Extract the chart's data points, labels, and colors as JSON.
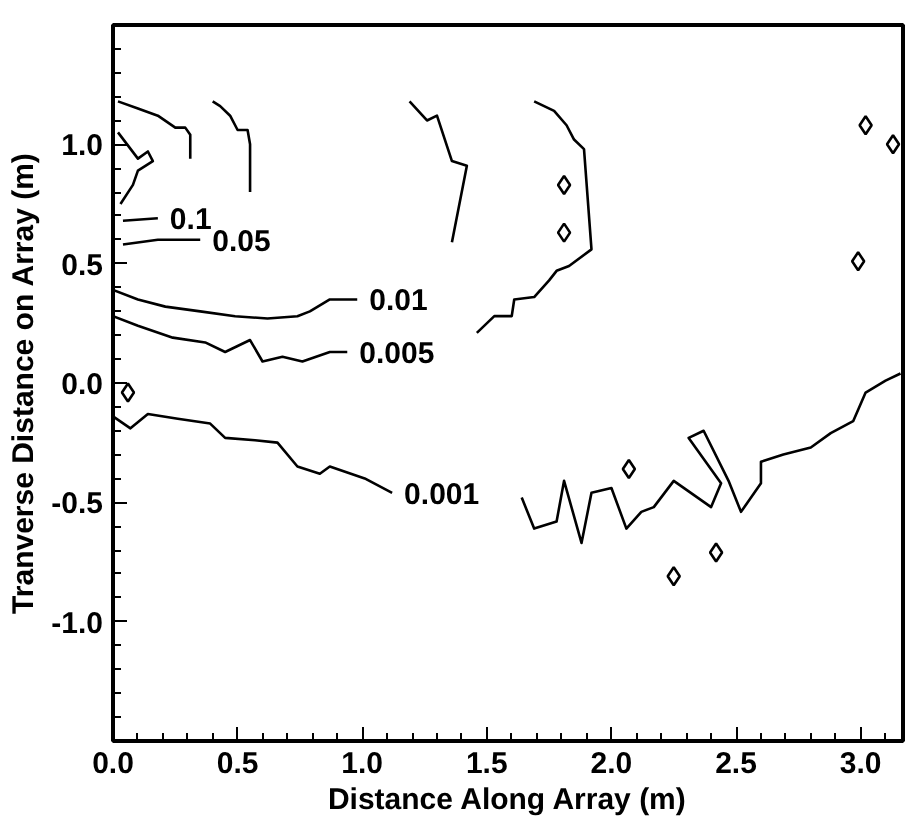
{
  "chart_data": {
    "type": "line",
    "xlabel": "Distance Along Array (m)",
    "ylabel": "Tranverse Distance on Array (m)",
    "xlim": [
      0,
      3.17
    ],
    "ylim": [
      -1.5,
      1.5
    ],
    "xticks": [
      {
        "value": 0,
        "label": "0.0"
      },
      {
        "value": 0.5,
        "label": "0.5"
      },
      {
        "value": 1,
        "label": "1.0"
      },
      {
        "value": 1.5,
        "label": "1.5"
      },
      {
        "value": 2,
        "label": "2.0"
      },
      {
        "value": 2.5,
        "label": "2.5"
      },
      {
        "value": 3,
        "label": "3.0"
      },
      {
        "value": 0.1,
        "label": null
      },
      {
        "value": 0.2,
        "label": null
      },
      {
        "value": 0.3,
        "label": null
      },
      {
        "value": 0.4,
        "label": null
      },
      {
        "value": 0.6,
        "label": null
      },
      {
        "value": 0.7,
        "label": null
      },
      {
        "value": 0.8,
        "label": null
      },
      {
        "value": 0.9,
        "label": null
      },
      {
        "value": 1.1,
        "label": null
      },
      {
        "value": 1.2,
        "label": null
      },
      {
        "value": 1.3,
        "label": null
      },
      {
        "value": 1.4,
        "label": null
      },
      {
        "value": 1.6,
        "label": null
      },
      {
        "value": 1.7,
        "label": null
      },
      {
        "value": 1.8,
        "label": null
      },
      {
        "value": 1.9,
        "label": null
      },
      {
        "value": 2.1,
        "label": null
      },
      {
        "value": 2.2,
        "label": null
      },
      {
        "value": 2.3,
        "label": null
      },
      {
        "value": 2.4,
        "label": null
      },
      {
        "value": 2.6,
        "label": null
      },
      {
        "value": 2.7,
        "label": null
      },
      {
        "value": 2.8,
        "label": null
      },
      {
        "value": 2.9,
        "label": null
      },
      {
        "value": 3.1,
        "label": null
      }
    ],
    "yticks": [
      {
        "value": -1,
        "label": "-1.0"
      },
      {
        "value": -0.5,
        "label": "-0.5"
      },
      {
        "value": 0,
        "label": "0.0"
      },
      {
        "value": 0.5,
        "label": "0.5"
      },
      {
        "value": 1,
        "label": "1.0"
      },
      {
        "value": -1.4,
        "label": null
      },
      {
        "value": -1.3,
        "label": null
      },
      {
        "value": -1.2,
        "label": null
      },
      {
        "value": -1.1,
        "label": null
      },
      {
        "value": -0.9,
        "label": null
      },
      {
        "value": -0.8,
        "label": null
      },
      {
        "value": -0.7,
        "label": null
      },
      {
        "value": -0.6,
        "label": null
      },
      {
        "value": -0.4,
        "label": null
      },
      {
        "value": -0.3,
        "label": null
      },
      {
        "value": -0.2,
        "label": null
      },
      {
        "value": -0.1,
        "label": null
      },
      {
        "value": 0.1,
        "label": null
      },
      {
        "value": 0.2,
        "label": null
      },
      {
        "value": 0.3,
        "label": null
      },
      {
        "value": 0.4,
        "label": null
      },
      {
        "value": 0.6,
        "label": null
      },
      {
        "value": 0.7,
        "label": null
      },
      {
        "value": 0.8,
        "label": null
      },
      {
        "value": 0.9,
        "label": null
      },
      {
        "value": 1.1,
        "label": null
      },
      {
        "value": 1.2,
        "label": null
      },
      {
        "value": 1.3,
        "label": null
      },
      {
        "value": 1.4,
        "label": null
      }
    ],
    "grid": false,
    "series": [
      {
        "color": "#000000",
        "x": [
          0.02,
          0.1,
          0.18,
          0.25,
          0.29,
          0.31,
          0.31,
          null,
          0.18,
          0.04,
          null,
          0.02,
          0.1,
          0.14,
          0.16,
          0.1,
          0.08,
          0.03
        ],
        "values": [
          1.18,
          1.15,
          1.12,
          1.07,
          1.07,
          1.04,
          0.94,
          null,
          0.69,
          0.68,
          null,
          1.05,
          0.94,
          0.97,
          0.93,
          0.89,
          0.83,
          0.75
        ]
      },
      {
        "color": "#000000",
        "x": [
          0.4,
          0.43,
          0.47,
          0.5,
          0.54,
          0.55,
          0.55,
          null,
          0.35,
          0.26,
          0.18,
          0.04
        ],
        "values": [
          1.18,
          1.16,
          1.12,
          1.06,
          1.06,
          1.0,
          0.8,
          null,
          0.6,
          0.6,
          0.6,
          0.58
        ]
      },
      {
        "color": "#000000",
        "x": [
          1.19,
          1.26,
          1.3,
          1.36,
          1.42,
          1.36,
          null,
          0.98,
          0.87,
          0.79,
          0.74,
          0.62,
          0.49,
          0.35,
          0.21,
          0.1,
          0
        ],
        "values": [
          1.18,
          1.1,
          1.12,
          0.93,
          0.91,
          0.59,
          null,
          0.35,
          0.35,
          0.3,
          0.28,
          0.27,
          0.28,
          0.3,
          0.32,
          0.35,
          0.39
        ]
      },
      {
        "color": "#000000",
        "x": [
          1.69,
          1.77,
          1.82,
          1.85,
          1.89,
          1.92,
          1.83,
          1.78,
          1.75,
          1.69,
          1.61,
          1.6,
          1.53,
          1.46,
          null,
          0.94,
          0.87,
          0.76,
          0.68,
          0.6,
          0.55,
          0.45,
          0.37,
          0.24,
          0.1,
          0
        ],
        "values": [
          1.18,
          1.14,
          1.08,
          1.02,
          0.98,
          0.56,
          0.49,
          0.47,
          0.43,
          0.36,
          0.35,
          0.28,
          0.28,
          0.21,
          null,
          0.13,
          0.13,
          0.09,
          0.11,
          0.09,
          0.18,
          0.13,
          0.17,
          0.19,
          0.24,
          0.28
        ]
      },
      {
        "color": "#000000",
        "x": [
          0,
          0.07,
          0.14,
          0.26,
          0.39,
          0.45,
          0.57,
          0.66,
          0.74,
          0.83,
          0.87,
          1.01,
          1.12,
          null,
          1.64,
          1.69,
          1.78,
          1.81,
          1.88,
          1.92,
          2.0,
          2.06,
          2.12,
          2.17,
          2.25,
          2.4,
          2.44,
          2.31,
          2.37,
          2.47,
          2.52,
          2.6,
          2.6,
          2.69,
          2.8,
          2.88,
          2.97,
          3.02,
          3.1,
          3.16
        ],
        "values": [
          -0.14,
          -0.19,
          -0.13,
          -0.15,
          -0.17,
          -0.23,
          -0.24,
          -0.25,
          -0.35,
          -0.38,
          -0.35,
          -0.4,
          -0.46,
          null,
          -0.48,
          -0.61,
          -0.58,
          -0.41,
          -0.67,
          -0.46,
          -0.44,
          -0.61,
          -0.54,
          -0.52,
          -0.41,
          -0.52,
          -0.42,
          -0.23,
          -0.2,
          -0.41,
          -0.54,
          -0.42,
          -0.33,
          -0.3,
          -0.27,
          -0.21,
          -0.16,
          -0.04,
          0.01,
          0.04
        ]
      },
      {
        "type": "scatter",
        "marker": "diamond",
        "color": "#000000",
        "x": [
          1.81,
          1.81,
          3.02,
          3.13,
          2.99,
          0.06,
          2.25,
          2.42,
          2.07
        ],
        "values": [
          0.83,
          0.63,
          1.08,
          1.0,
          0.51,
          -0.04,
          -0.81,
          -0.71,
          -0.36
        ]
      }
    ],
    "annotations": [
      {
        "text": "0.1",
        "x": 0.18,
        "y": 0.69
      },
      {
        "text": "0.05",
        "x": 0.35,
        "y": 0.6
      },
      {
        "text": "0.01",
        "x": 0.98,
        "y": 0.35
      },
      {
        "text": "0.005",
        "x": 0.94,
        "y": 0.13
      },
      {
        "text": "0.001",
        "x": 1.12,
        "y": -0.46
      }
    ]
  }
}
